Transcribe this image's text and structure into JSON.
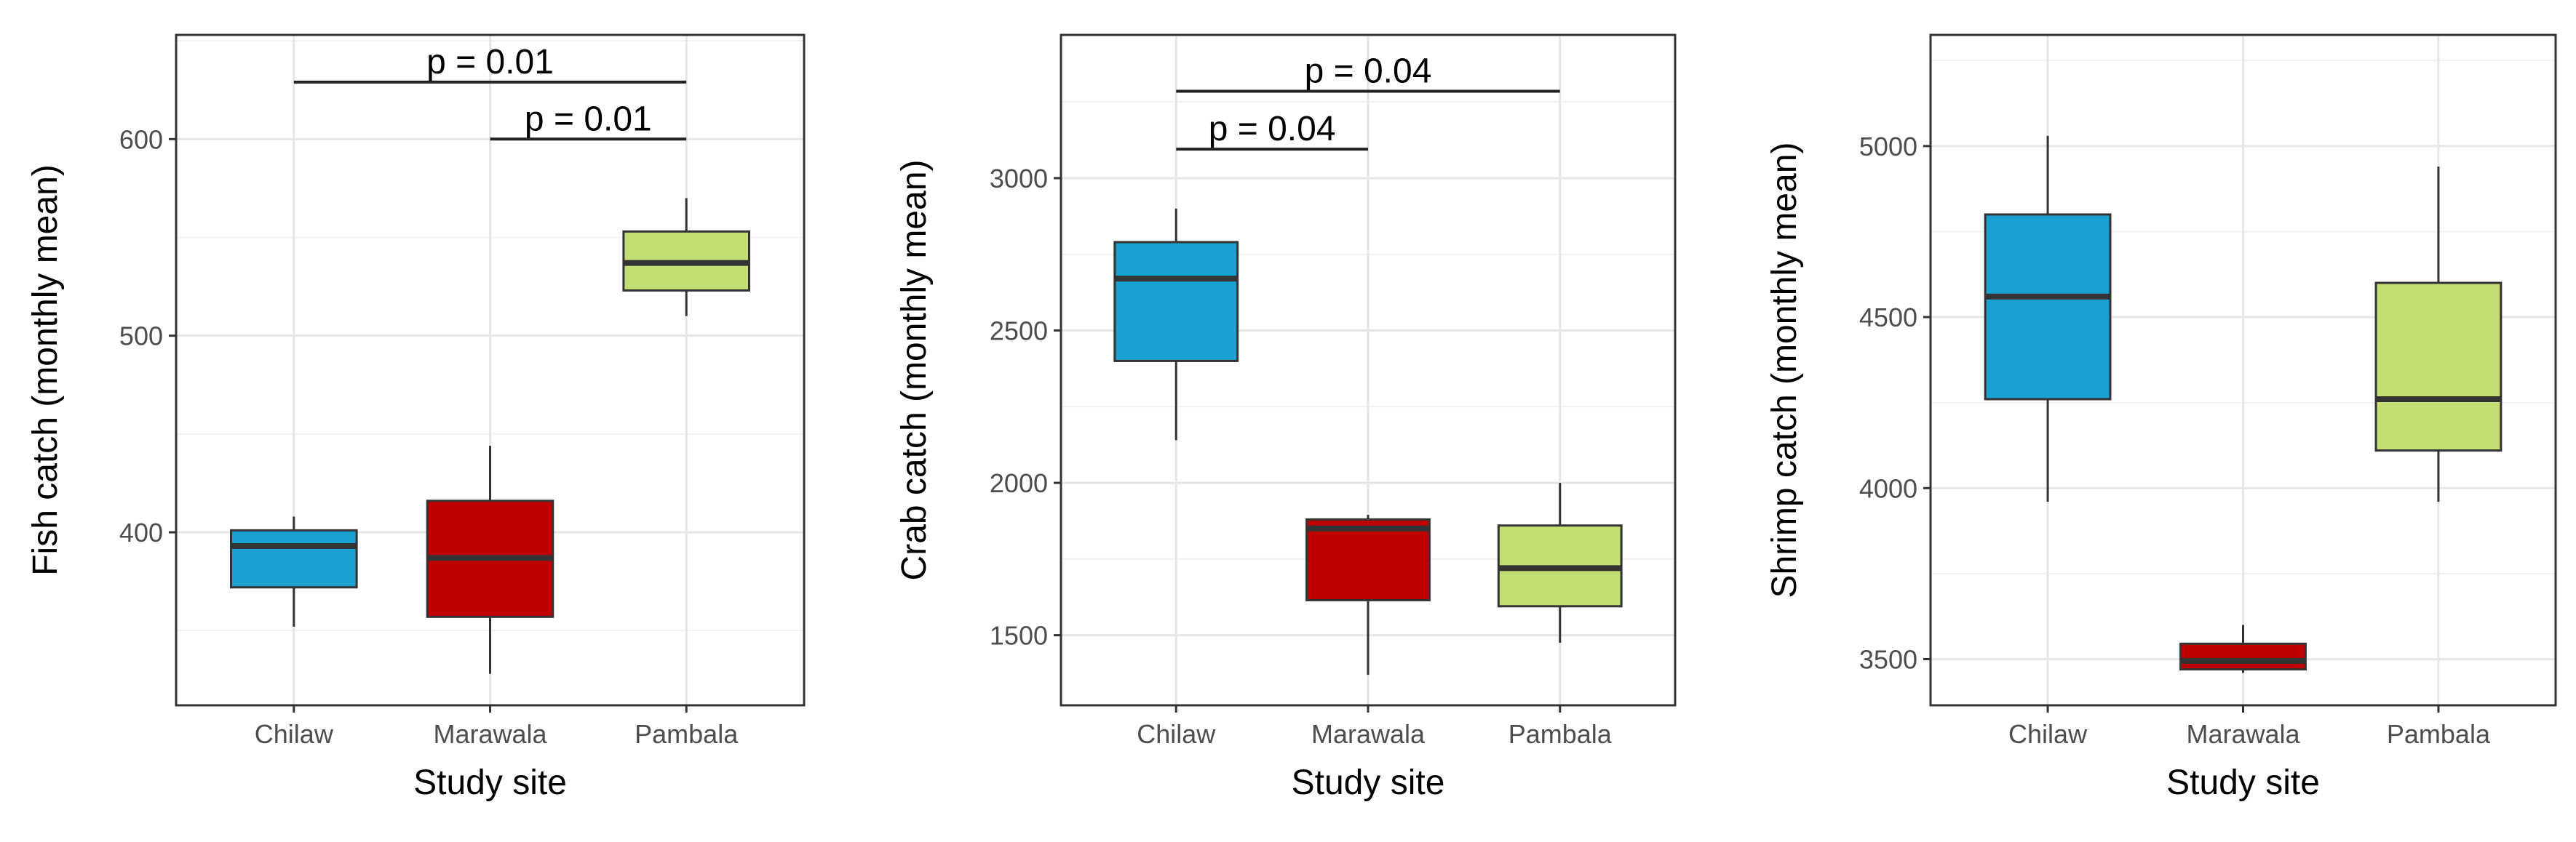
{
  "chart_data": [
    {
      "type": "box",
      "categories": [
        "Chilaw",
        "Marawala",
        "Pambala"
      ],
      "xlabel": "Study site",
      "ylabel": "Fish catch (monthly mean)",
      "ylim": [
        312,
        653
      ],
      "yticks": [
        400,
        500,
        600
      ],
      "ytick_labels": [
        "400",
        "500",
        "600"
      ],
      "grid": true,
      "boxes": [
        {
          "category": "Chilaw",
          "whisker_low": 352,
          "q1": 372,
          "median": 393,
          "q3": 401,
          "whisker_high": 408,
          "fill": "#1ba1d1"
        },
        {
          "category": "Marawala",
          "whisker_low": 328,
          "q1": 357,
          "median": 387,
          "q3": 416,
          "whisker_high": 444,
          "fill": "#c00000"
        },
        {
          "category": "Pambala",
          "whisker_low": 510,
          "q1": 523,
          "median": 537,
          "q3": 553,
          "whisker_high": 570,
          "fill": "#c3df74"
        }
      ],
      "annotations": [
        {
          "from": "Chilaw",
          "to": "Pambala",
          "y": 629,
          "label": "p = 0.01"
        },
        {
          "from": "Marawala",
          "to": "Pambala",
          "y": 600,
          "label": "p = 0.01"
        }
      ]
    },
    {
      "type": "box",
      "categories": [
        "Chilaw",
        "Marawala",
        "Pambala"
      ],
      "xlabel": "Study site",
      "ylabel": "Crab catch (monthly mean)",
      "ylim": [
        1270,
        3470
      ],
      "yticks": [
        1500,
        2000,
        2500,
        3000
      ],
      "ytick_labels": [
        "1500",
        "2000",
        "2500",
        "3000"
      ],
      "grid": true,
      "boxes": [
        {
          "category": "Chilaw",
          "whisker_low": 2140,
          "q1": 2400,
          "median": 2670,
          "q3": 2790,
          "whisker_high": 2900,
          "fill": "#1ba1d1"
        },
        {
          "category": "Marawala",
          "whisker_low": 1370,
          "q1": 1615,
          "median": 1850,
          "q3": 1880,
          "whisker_high": 1895,
          "fill": "#c00000"
        },
        {
          "category": "Pambala",
          "whisker_low": 1475,
          "q1": 1595,
          "median": 1720,
          "q3": 1860,
          "whisker_high": 2000,
          "fill": "#c3df74"
        }
      ],
      "annotations": [
        {
          "from": "Chilaw",
          "to": "Pambala",
          "y": 3285,
          "label": "p = 0.04"
        },
        {
          "from": "Chilaw",
          "to": "Marawala",
          "y": 3095,
          "label": "p = 0.04"
        }
      ]
    },
    {
      "type": "box",
      "categories": [
        "Chilaw",
        "Marawala",
        "Pambala"
      ],
      "xlabel": "Study site",
      "ylabel": "Shrimp catch (monthly mean)",
      "ylim": [
        3365,
        5325
      ],
      "yticks": [
        3500,
        4000,
        4500,
        5000
      ],
      "ytick_labels": [
        "3500",
        "4000",
        "4500",
        "5000"
      ],
      "grid": true,
      "boxes": [
        {
          "category": "Chilaw",
          "whisker_low": 3960,
          "q1": 4260,
          "median": 4560,
          "q3": 4800,
          "whisker_high": 5030,
          "fill": "#1ba1d1"
        },
        {
          "category": "Marawala",
          "whisker_low": 3460,
          "q1": 3470,
          "median": 3495,
          "q3": 3545,
          "whisker_high": 3600,
          "fill": "#c00000"
        },
        {
          "category": "Pambala",
          "whisker_low": 3960,
          "q1": 4110,
          "median": 4260,
          "q3": 4600,
          "whisker_high": 4940,
          "fill": "#c3df74"
        }
      ],
      "annotations": []
    }
  ]
}
